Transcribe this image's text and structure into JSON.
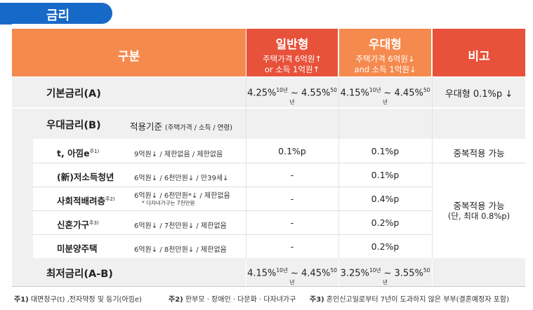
{
  "tab": {
    "title": "금리"
  },
  "header": {
    "category": "구분",
    "general": {
      "title": "일반형",
      "line1": "주택가격 6억원↑",
      "line2": "or 소득 1억원↑"
    },
    "preferred": {
      "title": "우대형",
      "line1": "주택가격 6억원↓",
      "line2": "and 소득 1억원↓"
    },
    "remarks": "비고"
  },
  "base_rate": {
    "label": "기본금리(A)",
    "general": {
      "low": "4.25%",
      "low_term": "10년",
      "sep": " ~ ",
      "high": "4.55%",
      "high_term": "50년"
    },
    "preferred": {
      "low": "4.15%",
      "low_term": "10년",
      "sep": " ~ ",
      "high": "4.45%",
      "high_term": "50년"
    },
    "remark": "우대형 0.1%p ↓"
  },
  "pref_rate": {
    "label": "우대금리(B)",
    "criteria_title": "적용기준",
    "criteria_sub": "(주택가격 / 소득 / 연령)",
    "rows": [
      {
        "name": "t, 아낌e",
        "note": "주1)",
        "criteria": "9억원↓ / 제한없음 / 제한없음",
        "criteria2": "",
        "general": "0.1%p",
        "preferred": "0.1%p"
      },
      {
        "name": "(新)저소득청년",
        "note": "",
        "criteria": "6억원↓ / 6천만원↓ / 만39세↓",
        "criteria2": "",
        "general": "-",
        "preferred": "0.1%p"
      },
      {
        "name": "사회적배려층",
        "note": "주2)",
        "criteria": "6억원↓ / 6천만원*↓ / 제한없음",
        "criteria2": "* 다자녀가구는 7천만원",
        "general": "-",
        "preferred": "0.4%p"
      },
      {
        "name": "신혼가구",
        "note": "주3)",
        "criteria": "6억원↓ / 7천만원↓ / 제한없음",
        "criteria2": "",
        "general": "-",
        "preferred": "0.2%p"
      },
      {
        "name": "미분양주택",
        "note": "",
        "criteria": "6억원↓ / 8천만원↓ / 제한없음",
        "criteria2": "",
        "general": "-",
        "preferred": "0.2%p"
      }
    ],
    "remark1": "중복적용 가능",
    "remark2_l1": "중복적용 가능",
    "remark2_l2": "(단, 최대 0.8%p)"
  },
  "min_rate": {
    "label": "최저금리(A-B)",
    "general": {
      "low": "4.15%",
      "low_term": "10년",
      "sep": " ~ ",
      "high": "4.45%",
      "high_term": "50년"
    },
    "preferred": {
      "low": "3.25%",
      "low_term": "10년",
      "sep": " ~ ",
      "high": "3.55%",
      "high_term": "50년"
    }
  },
  "footnotes": [
    {
      "key": "주1)",
      "text": " 대면창구(t) ,전자약정 및 등기(아낌e)"
    },
    {
      "key": "주2)",
      "text": " 한부모 · 장애인 · 다문화 · 다자녀가구"
    },
    {
      "key": "주3)",
      "text": " 혼인신고일로부터 7년이 도과하지 않은 부부(결혼예정자 포함)"
    }
  ],
  "colors": {
    "blue": "#1769c8",
    "orange": "#f58a4e",
    "red": "#e8513a",
    "gray": "#f0f0f0"
  }
}
